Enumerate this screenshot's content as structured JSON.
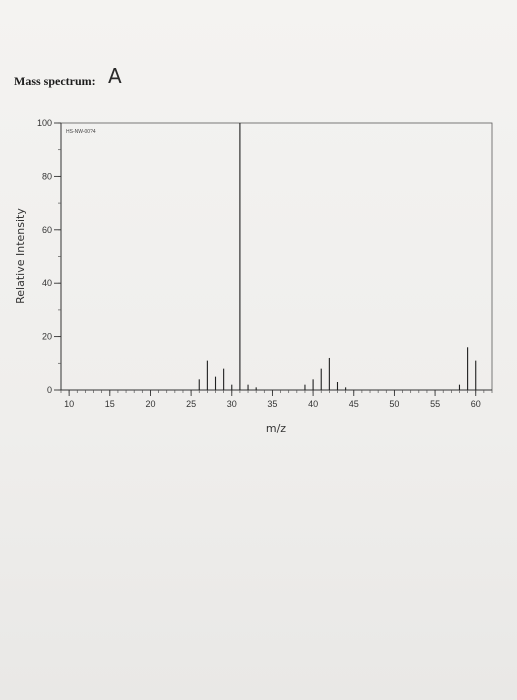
{
  "page": {
    "heading": "Mass spectrum:",
    "handwritten_label": "A"
  },
  "chart_data": {
    "type": "bar",
    "title": "",
    "code": "HS-NW-00?4",
    "xlabel": "m/z",
    "ylabel": "Relative Intensity",
    "xlim": [
      9,
      62
    ],
    "ylim": [
      0,
      100
    ],
    "x_ticks": [
      10,
      15,
      20,
      25,
      30,
      35,
      40,
      45,
      50,
      55,
      60
    ],
    "y_ticks": [
      0,
      20,
      40,
      60,
      80,
      100
    ],
    "grid": false,
    "legend": "none",
    "peaks": [
      {
        "x": 26,
        "y": 4
      },
      {
        "x": 27,
        "y": 11
      },
      {
        "x": 28,
        "y": 5
      },
      {
        "x": 29,
        "y": 8
      },
      {
        "x": 30,
        "y": 2
      },
      {
        "x": 31,
        "y": 100
      },
      {
        "x": 32,
        "y": 2
      },
      {
        "x": 33,
        "y": 1
      },
      {
        "x": 39,
        "y": 2
      },
      {
        "x": 40,
        "y": 4
      },
      {
        "x": 41,
        "y": 8
      },
      {
        "x": 42,
        "y": 12
      },
      {
        "x": 43,
        "y": 3
      },
      {
        "x": 44,
        "y": 1
      },
      {
        "x": 58,
        "y": 2
      },
      {
        "x": 59,
        "y": 16
      },
      {
        "x": 60,
        "y": 11
      }
    ]
  }
}
